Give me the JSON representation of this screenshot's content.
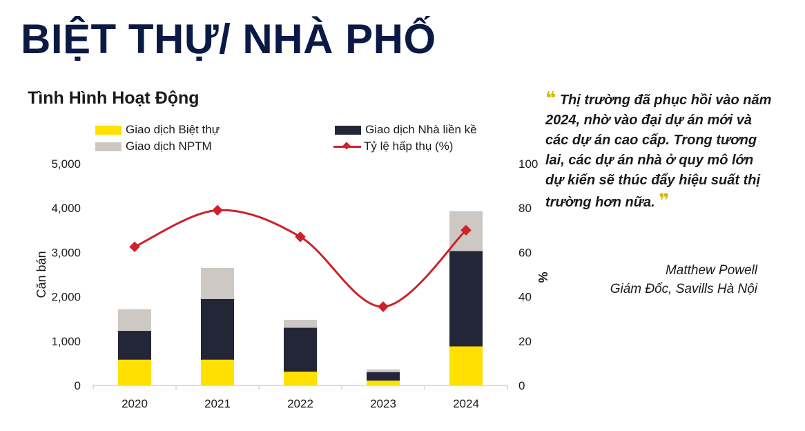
{
  "page_title": "BIỆT THỰ/ NHÀ PHỐ",
  "quote": {
    "text": "Thị trường đã phục hồi vào năm 2024, nhờ vào đại dự án mới và các dự án cao cấp. Trong tương lai, các dự án nhà ở quy mô lớn dự kiến sẽ thúc đẩy hiệu suất thị trường hơn nữa.",
    "author_name": "Matthew Powell",
    "author_title": "Giám Đốc,  Savills  Hà Nội",
    "mark_color": "#d4b800"
  },
  "chart_data": {
    "type": "bar",
    "stacked": true,
    "title": "Tình Hình Hoạt Động",
    "categories": [
      "2020",
      "2021",
      "2022",
      "2023",
      "2024"
    ],
    "series": [
      {
        "name": "Giao dịch Biệt thự",
        "kind": "bar",
        "color": "#ffe000",
        "values": [
          580,
          580,
          310,
          110,
          880
        ]
      },
      {
        "name": "Giao dịch Nhà liền kề",
        "kind": "bar",
        "color": "#232637",
        "values": [
          650,
          1370,
          990,
          190,
          2150
        ]
      },
      {
        "name": "Giao dịch NPTM",
        "kind": "bar",
        "color": "#cdc8c3",
        "values": [
          490,
          700,
          180,
          60,
          900
        ]
      },
      {
        "name": "Tỷ lệ hấp thụ (%)",
        "kind": "line",
        "axis": "right",
        "color": "#cc2229",
        "values": [
          62.5,
          79,
          67,
          35.5,
          70
        ]
      }
    ],
    "legend_order": [
      0,
      1,
      2,
      3
    ],
    "ylabel_left": "Căn bán",
    "ylabel_right": "%",
    "ylim_left": [
      0,
      5000
    ],
    "ylim_right": [
      0,
      100
    ],
    "yticks_left": [
      "0",
      "1,000",
      "2,000",
      "3,000",
      "4,000",
      "5,000"
    ],
    "yticks_right": [
      "0",
      "20",
      "40",
      "60",
      "80",
      "100"
    ],
    "grid": false,
    "legend_position": "top"
  }
}
